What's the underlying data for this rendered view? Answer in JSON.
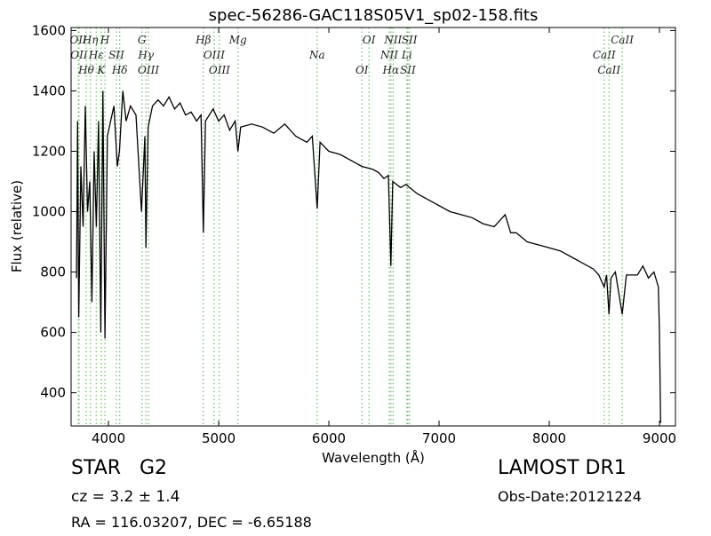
{
  "chart_data": {
    "type": "line",
    "title": "spec-56286-GAC118S05V1_sp02-158.fits",
    "x_label": "Wavelength (Å)",
    "y_label": "Flux (relative)",
    "xlim": [
      3661,
      9145
    ],
    "ylim": [
      290,
      1610
    ],
    "xticks": [
      4000,
      5000,
      6000,
      7000,
      8000,
      9000
    ],
    "yticks": [
      400,
      600,
      800,
      1000,
      1200,
      1400,
      1600
    ],
    "color": "#000000",
    "line_color": "#66bb66",
    "x": [
      3710,
      3720,
      3730,
      3750,
      3770,
      3790,
      3810,
      3830,
      3850,
      3870,
      3890,
      3910,
      3930,
      3950,
      3968,
      3990,
      4020,
      4050,
      4080,
      4100,
      4130,
      4160,
      4200,
      4250,
      4300,
      4330,
      4340,
      4360,
      4400,
      4450,
      4500,
      4550,
      4600,
      4650,
      4700,
      4750,
      4800,
      4840,
      4861,
      4880,
      4950,
      5000,
      5050,
      5100,
      5150,
      5175,
      5200,
      5300,
      5400,
      5500,
      5600,
      5700,
      5800,
      5850,
      5894,
      5920,
      6000,
      6100,
      6200,
      6300,
      6400,
      6450,
      6500,
      6540,
      6563,
      6580,
      6650,
      6700,
      6800,
      6900,
      7000,
      7100,
      7200,
      7300,
      7400,
      7500,
      7600,
      7650,
      7700,
      7800,
      7900,
      8000,
      8100,
      8200,
      8300,
      8400,
      8450,
      8498,
      8520,
      8542,
      8560,
      8600,
      8662,
      8700,
      8800,
      8850,
      8900,
      8950,
      8990,
      9000,
      9010
    ],
    "values": [
      780,
      1300,
      650,
      1150,
      950,
      1350,
      1000,
      1100,
      700,
      1200,
      950,
      1300,
      600,
      1400,
      580,
      1250,
      1300,
      1350,
      1150,
      1200,
      1400,
      1300,
      1350,
      1320,
      1000,
      1250,
      880,
      1280,
      1350,
      1370,
      1350,
      1380,
      1340,
      1360,
      1320,
      1330,
      1300,
      1320,
      930,
      1300,
      1340,
      1300,
      1320,
      1270,
      1300,
      1200,
      1280,
      1290,
      1280,
      1260,
      1290,
      1250,
      1230,
      1250,
      1010,
      1230,
      1200,
      1190,
      1170,
      1150,
      1140,
      1130,
      1110,
      1120,
      820,
      1100,
      1080,
      1090,
      1060,
      1040,
      1020,
      1000,
      990,
      980,
      960,
      950,
      990,
      930,
      930,
      900,
      890,
      880,
      870,
      850,
      830,
      810,
      790,
      750,
      790,
      660,
      780,
      800,
      660,
      790,
      790,
      820,
      780,
      800,
      750,
      600,
      300
    ],
    "spectral_lines": [
      {
        "wavelength": 3727,
        "label": "OII"
      },
      {
        "wavelength": 3733,
        "label": "OII"
      },
      {
        "wavelength": 3798,
        "label": "Hθ"
      },
      {
        "wavelength": 3835,
        "label": "Hη"
      },
      {
        "wavelength": 3889,
        "label": "Hε"
      },
      {
        "wavelength": 3934,
        "label": "K"
      },
      {
        "wavelength": 3968,
        "label": "H"
      },
      {
        "wavelength": 4072,
        "label": "SII"
      },
      {
        "wavelength": 4102,
        "label": "Hδ"
      },
      {
        "wavelength": 4304,
        "label": "G"
      },
      {
        "wavelength": 4340,
        "label": "Hγ"
      },
      {
        "wavelength": 4363,
        "label": "OIII"
      },
      {
        "wavelength": 4861,
        "label": "Hβ"
      },
      {
        "wavelength": 4959,
        "label": "OIII"
      },
      {
        "wavelength": 5007,
        "label": "OIII"
      },
      {
        "wavelength": 5175,
        "label": "Mg"
      },
      {
        "wavelength": 5894,
        "label": "Na"
      },
      {
        "wavelength": 6300,
        "label": "OI"
      },
      {
        "wavelength": 6364,
        "label": "OI"
      },
      {
        "wavelength": 6548,
        "label": "NII"
      },
      {
        "wavelength": 6563,
        "label": "Hα"
      },
      {
        "wavelength": 6583,
        "label": "NII"
      },
      {
        "wavelength": 6708,
        "label": "Li"
      },
      {
        "wavelength": 6717,
        "label": "SII"
      },
      {
        "wavelength": 6731,
        "label": "SII"
      },
      {
        "wavelength": 8498,
        "label": "CaII"
      },
      {
        "wavelength": 8542,
        "label": "CaII"
      },
      {
        "wavelength": 8662,
        "label": "CaII"
      }
    ],
    "class_label": "STAR   G2",
    "redshift": "cz = 3.2 ± 1.4",
    "coordinates": "RA = 116.03207, DEC = -6.65188",
    "survey": "LAMOST DR1",
    "obs_date": "Obs-Date:20121224"
  }
}
